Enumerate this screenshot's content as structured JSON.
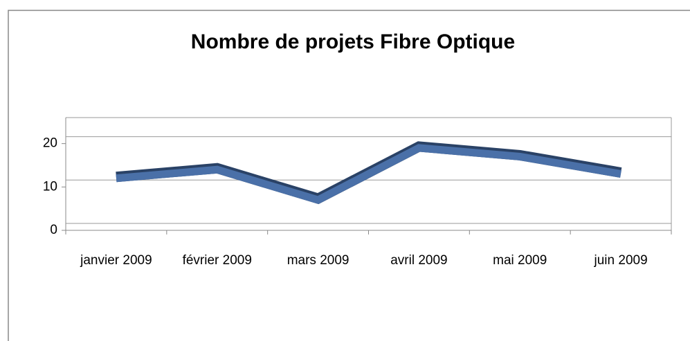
{
  "chart_data": {
    "type": "line",
    "title": "Nombre de projets Fibre Optique",
    "categories": [
      "janvier 2009",
      "février 2009",
      "mars 2009",
      "avril 2009",
      "mai 2009",
      "juin 2009"
    ],
    "values": [
      12,
      14,
      7,
      19,
      17,
      13
    ],
    "color": "#4a70a8",
    "ylim": [
      0,
      26
    ],
    "yticks": [
      0,
      10,
      20
    ],
    "grid": true
  }
}
